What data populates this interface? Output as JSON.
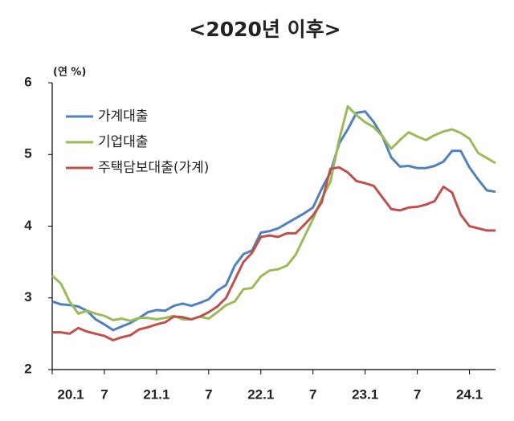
{
  "chart_data": {
    "type": "line",
    "title": "<2020년 이후>",
    "y_label": "(연 %)",
    "categories": [
      "20.1",
      null,
      null,
      null,
      null,
      null,
      "7",
      null,
      null,
      null,
      null,
      null,
      "21.1",
      null,
      null,
      null,
      null,
      null,
      "7",
      null,
      null,
      null,
      null,
      null,
      "22.1",
      null,
      null,
      null,
      null,
      null,
      "7",
      null,
      null,
      null,
      null,
      null,
      "23.1",
      null,
      null,
      null,
      null,
      null,
      "7",
      null,
      null,
      null,
      null,
      null,
      "24.1",
      null,
      null,
      null
    ],
    "series": [
      {
        "name": "가계대출",
        "color": "#4f81bd",
        "values": [
          2.95,
          2.91,
          2.9,
          2.88,
          2.82,
          2.7,
          2.63,
          2.55,
          2.6,
          2.65,
          2.72,
          2.8,
          2.83,
          2.82,
          2.89,
          2.92,
          2.89,
          2.93,
          2.98,
          3.1,
          3.18,
          3.45,
          3.61,
          3.66,
          3.91,
          3.93,
          3.97,
          4.04,
          4.11,
          4.18,
          4.26,
          4.52,
          4.75,
          5.15,
          5.35,
          5.58,
          5.6,
          5.45,
          5.25,
          4.96,
          4.83,
          4.84,
          4.81,
          4.81,
          4.84,
          4.9,
          5.05,
          5.05,
          4.82,
          4.65,
          4.5,
          4.48
        ]
      },
      {
        "name": "기업대출",
        "color": "#9bbb59",
        "values": [
          3.31,
          3.2,
          2.95,
          2.78,
          2.82,
          2.78,
          2.75,
          2.69,
          2.71,
          2.68,
          2.72,
          2.72,
          2.7,
          2.72,
          2.75,
          2.7,
          2.7,
          2.74,
          2.71,
          2.8,
          2.9,
          2.95,
          3.12,
          3.14,
          3.3,
          3.38,
          3.4,
          3.45,
          3.6,
          3.85,
          4.1,
          4.38,
          4.62,
          5.2,
          5.67,
          5.55,
          5.45,
          5.38,
          5.25,
          5.08,
          5.2,
          5.31,
          5.25,
          5.2,
          5.27,
          5.32,
          5.35,
          5.3,
          5.22,
          5.02,
          4.95,
          4.88
        ]
      },
      {
        "name": "주택담보대출(가계)",
        "color": "#c0504d",
        "values": [
          2.52,
          2.52,
          2.5,
          2.58,
          2.53,
          2.5,
          2.47,
          2.41,
          2.45,
          2.48,
          2.56,
          2.59,
          2.63,
          2.66,
          2.74,
          2.73,
          2.7,
          2.74,
          2.8,
          2.88,
          3.0,
          3.25,
          3.5,
          3.63,
          3.85,
          3.87,
          3.85,
          3.9,
          3.9,
          4.02,
          4.15,
          4.33,
          4.8,
          4.82,
          4.75,
          4.63,
          4.6,
          4.56,
          4.4,
          4.24,
          4.22,
          4.26,
          4.27,
          4.3,
          4.35,
          4.55,
          4.47,
          4.16,
          4.0,
          3.97,
          3.94,
          3.94
        ]
      }
    ],
    "ylim": [
      2,
      6
    ],
    "yticks": [
      2,
      3,
      4,
      5,
      6
    ],
    "grid": false,
    "legend": "upper left"
  }
}
